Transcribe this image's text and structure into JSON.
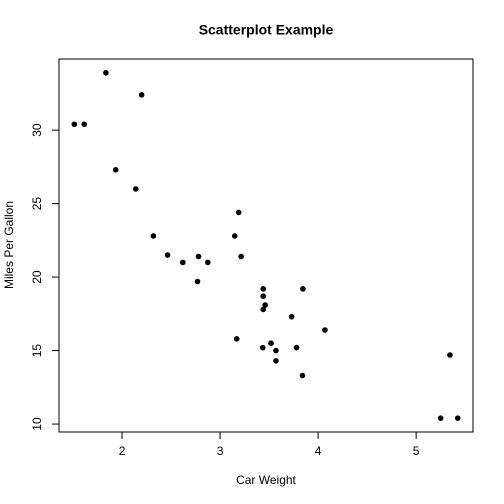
{
  "chart_data": {
    "type": "scatter",
    "title": "Scatterplot Example",
    "x_label": "Car Weight",
    "y_label": "Miles Per Gallon",
    "series": [
      {
        "color": "#000000",
        "x": [
          2.62,
          2.875,
          2.32,
          3.215,
          3.44,
          3.46,
          3.57,
          3.19,
          3.15,
          3.44,
          3.44,
          4.07,
          3.73,
          3.78,
          5.25,
          5.424,
          5.345,
          2.2,
          1.615,
          1.835,
          2.465,
          3.52,
          3.435,
          3.84,
          3.845,
          1.935,
          2.14,
          1.513,
          3.17,
          2.77,
          3.57,
          2.78
        ],
        "values": [
          21.0,
          21.0,
          22.8,
          21.4,
          18.7,
          18.1,
          14.3,
          24.4,
          22.8,
          19.2,
          17.8,
          16.4,
          17.3,
          15.2,
          10.4,
          10.4,
          14.7,
          32.4,
          30.4,
          33.9,
          21.5,
          15.5,
          15.2,
          13.3,
          19.2,
          27.3,
          26.0,
          30.4,
          15.8,
          19.7,
          15.0,
          21.4
        ]
      }
    ],
    "xlim": [
      1.357,
      5.58
    ],
    "ylim": [
      9.46,
      34.84
    ],
    "xticks": [
      2,
      3,
      4,
      5
    ],
    "yticks": [
      10,
      15,
      20,
      25,
      30
    ]
  }
}
